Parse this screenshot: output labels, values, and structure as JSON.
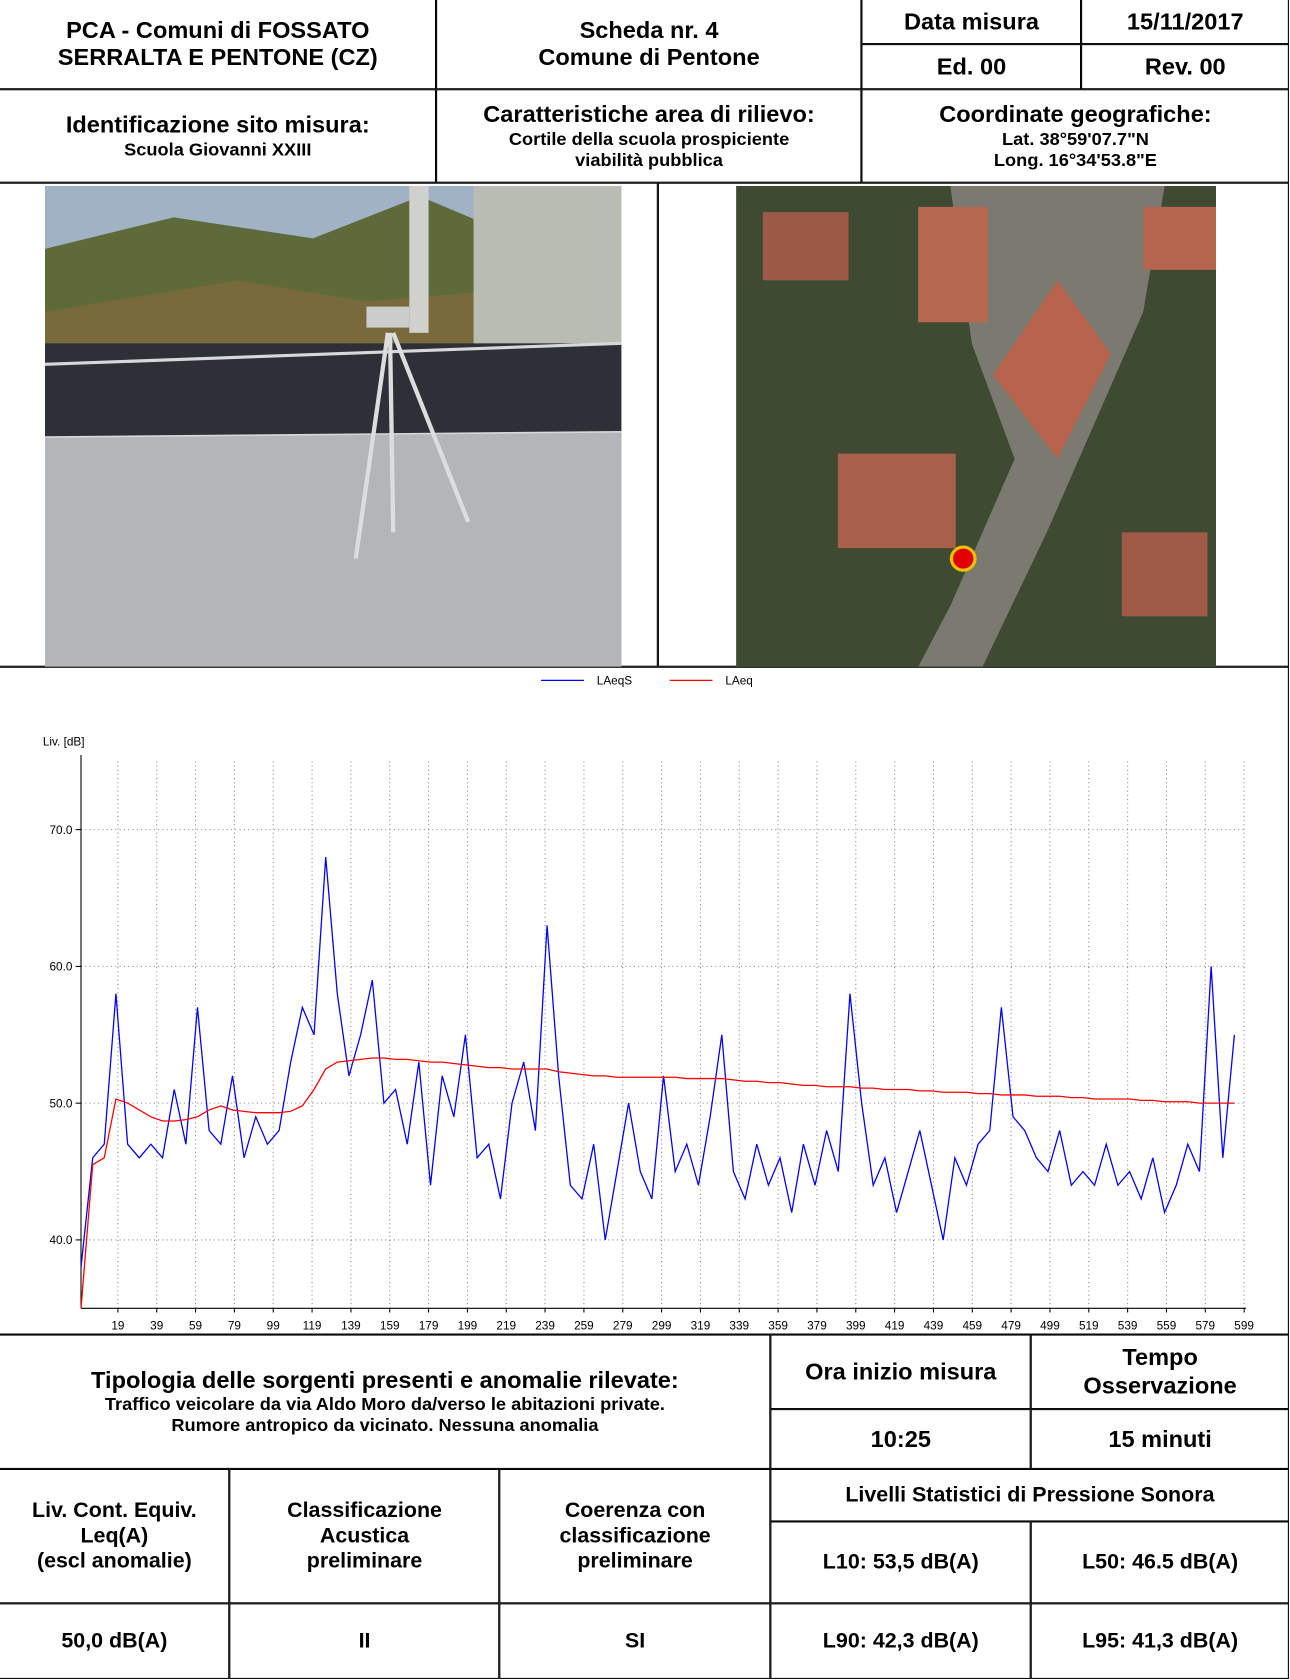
{
  "header": {
    "title_lines": [
      "PCA - Comuni di FOSSATO",
      "SERRALTA E PENTONE (CZ)"
    ],
    "sheet_lines": [
      "Scheda nr. 4",
      "Comune di Pentone"
    ],
    "date_label": "Data misura",
    "date": "15/11/2017",
    "edition": "Ed. 00",
    "revision": "Rev. 00"
  },
  "site": {
    "label": "Identificazione sito misura:",
    "value": "Scuola Giovanni XXIII"
  },
  "area": {
    "label": "Caratteristiche area di rilievo:",
    "value_lines": [
      "Cortile della scuola prospiciente",
      "viabilità pubblica"
    ]
  },
  "coordinates": {
    "label": "Coordinate geografiche:",
    "lat": "Lat. 38°59'07.7\"N",
    "long": "Long. 16°34'53.8\"E"
  },
  "chart_data": {
    "type": "line",
    "y_label": "Liv. [dB]",
    "x": [
      0,
      6,
      12,
      18,
      24,
      30,
      36,
      42,
      48,
      54,
      60,
      66,
      72,
      78,
      84,
      90,
      96,
      102,
      108,
      114,
      120,
      126,
      132,
      138,
      144,
      150,
      156,
      162,
      168,
      174,
      180,
      186,
      192,
      198,
      204,
      210,
      216,
      222,
      228,
      234,
      240,
      246,
      252,
      258,
      264,
      270,
      276,
      282,
      288,
      294,
      300,
      306,
      312,
      318,
      324,
      330,
      336,
      342,
      348,
      354,
      360,
      366,
      372,
      378,
      384,
      390,
      396,
      402,
      408,
      414,
      420,
      426,
      432,
      438,
      444,
      450,
      456,
      462,
      468,
      474,
      480,
      486,
      492,
      498,
      504,
      510,
      516,
      522,
      528,
      534,
      540,
      546,
      552,
      558,
      564,
      570,
      576,
      582,
      588,
      594
    ],
    "series": [
      {
        "name": "LAeqS",
        "color": "#0000ff",
        "values": [
          38,
          46,
          47,
          58,
          47,
          46,
          47,
          46,
          51,
          47,
          57,
          48,
          47,
          52,
          46,
          49,
          47,
          48,
          53,
          57,
          55,
          68,
          58,
          52,
          55,
          59,
          50,
          51,
          47,
          53,
          44,
          52,
          49,
          55,
          46,
          47,
          43,
          50,
          53,
          48,
          63,
          52,
          44,
          43,
          47,
          40,
          45,
          50,
          45,
          43,
          52,
          45,
          47,
          44,
          49,
          55,
          45,
          43,
          47,
          44,
          46,
          42,
          47,
          44,
          48,
          45,
          58,
          50,
          44,
          46,
          42,
          45,
          48,
          44,
          40,
          46,
          44,
          47,
          48,
          57,
          49,
          48,
          46,
          45,
          48,
          44,
          45,
          44,
          47,
          44,
          45,
          43,
          46,
          42,
          44,
          47,
          45,
          60,
          46,
          55
        ]
      },
      {
        "name": "LAeq",
        "color": "#ff0000",
        "values": [
          35,
          45.5,
          46,
          50.3,
          50,
          49.5,
          49,
          48.7,
          48.7,
          48.8,
          49,
          49.5,
          49.8,
          49.5,
          49.4,
          49.3,
          49.3,
          49.3,
          49.4,
          49.8,
          51,
          52.5,
          53,
          53.1,
          53.2,
          53.3,
          53.3,
          53.2,
          53.2,
          53.1,
          53,
          53,
          52.9,
          52.8,
          52.7,
          52.6,
          52.6,
          52.5,
          52.5,
          52.5,
          52.5,
          52.3,
          52.2,
          52.1,
          52,
          52,
          51.9,
          51.9,
          51.9,
          51.9,
          51.9,
          51.9,
          51.8,
          51.8,
          51.8,
          51.8,
          51.7,
          51.6,
          51.6,
          51.5,
          51.5,
          51.4,
          51.3,
          51.3,
          51.2,
          51.2,
          51.2,
          51.1,
          51.1,
          51,
          51,
          51,
          50.9,
          50.9,
          50.8,
          50.8,
          50.8,
          50.7,
          50.7,
          50.6,
          50.6,
          50.6,
          50.5,
          50.5,
          50.5,
          50.4,
          50.4,
          50.3,
          50.3,
          50.3,
          50.3,
          50.2,
          50.2,
          50.1,
          50.1,
          50.1,
          50,
          50,
          50,
          50
        ]
      }
    ],
    "xlim": [
      0,
      600
    ],
    "ylim": [
      35,
      75
    ],
    "xticks": [
      19,
      39,
      59,
      79,
      99,
      119,
      139,
      159,
      179,
      199,
      219,
      239,
      259,
      279,
      299,
      319,
      339,
      359,
      379,
      399,
      419,
      439,
      459,
      479,
      499,
      519,
      539,
      559,
      579,
      599
    ],
    "yticks": [
      {
        "value": 40,
        "label": "40.0"
      },
      {
        "value": 50,
        "label": "50.0"
      },
      {
        "value": 60,
        "label": "60.0"
      },
      {
        "value": 70,
        "label": "70.0"
      }
    ],
    "grid": true,
    "legend": "top"
  },
  "sources": {
    "label": "Tipologia delle sorgenti presenti e anomalie rilevate:",
    "lines": [
      "Traffico veicolare da via Aldo Moro da/verso le abitazioni private.",
      "Rumore antropico da vicinato. Nessuna anomalia"
    ]
  },
  "start_time": {
    "label": "Ora inizio misura",
    "value": "10:25"
  },
  "observation": {
    "label_lines": [
      "Tempo",
      "Osservazione"
    ],
    "value": "15 minuti"
  },
  "results": {
    "leq": {
      "label_lines": [
        "Liv. Cont. Equiv.",
        "Leq(A)",
        "(escl anomalie)"
      ],
      "value": "50,0 dB(A)"
    },
    "classification": {
      "label_lines": [
        "Classificazione",
        "Acustica",
        "preliminare"
      ],
      "value": "II"
    },
    "coherence": {
      "label_lines": [
        "Coerenza con",
        "classificazione",
        "preliminare"
      ],
      "value": "SI"
    },
    "statistics": {
      "label": "Livelli Statistici di Pressione Sonora",
      "l10": "L10: 53,5 dB(A)",
      "l50": "L50: 46.5 dB(A)",
      "l90": "L90: 42,3 dB(A)",
      "l95": "L95: 41,3 dB(A)"
    }
  }
}
